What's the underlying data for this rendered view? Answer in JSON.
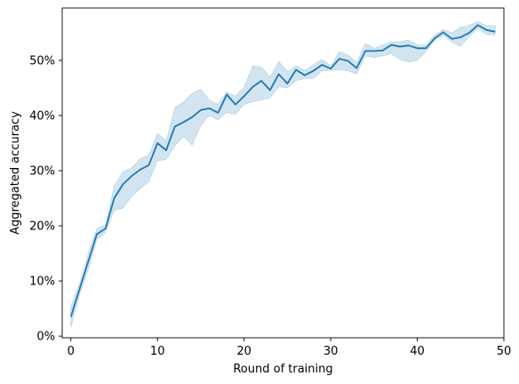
{
  "chart_data": {
    "type": "line",
    "title": "",
    "xlabel": "Round of training",
    "ylabel": "Aggregated accuracy",
    "xlim": [
      -1,
      50
    ],
    "ylim": [
      -0.3,
      59.5
    ],
    "x_ticks": [
      0,
      10,
      20,
      30,
      40,
      50
    ],
    "x_tick_labels": [
      "0",
      "10",
      "20",
      "30",
      "40",
      "50"
    ],
    "y_ticks": [
      0,
      10,
      20,
      30,
      40,
      50
    ],
    "y_tick_labels": [
      "0%",
      "10%",
      "20%",
      "30%",
      "40%",
      "50%"
    ],
    "grid": false,
    "line_color": "#1f77b4",
    "band_color": "#1f77b4",
    "series": [
      {
        "x": [
          0,
          1,
          2,
          3,
          4,
          5,
          6,
          7,
          8,
          9,
          10,
          11,
          12,
          13,
          14,
          15,
          16,
          17,
          18,
          19,
          20,
          21,
          22,
          23,
          24,
          25,
          26,
          27,
          28,
          29,
          30,
          31,
          32,
          33,
          34,
          35,
          36,
          37,
          38,
          39,
          40,
          41,
          42,
          43,
          44,
          45,
          46,
          47,
          48,
          49
        ],
        "mean": [
          3.5,
          8.5,
          13.5,
          18.5,
          19.5,
          25.0,
          27.5,
          29.0,
          30.2,
          31.0,
          35.0,
          33.7,
          38.0,
          38.8,
          39.7,
          41.0,
          41.3,
          40.5,
          43.8,
          42.0,
          43.5,
          45.2,
          46.3,
          44.6,
          47.5,
          45.8,
          48.3,
          47.3,
          48.1,
          49.2,
          48.5,
          50.3,
          49.9,
          48.6,
          51.7,
          51.7,
          51.8,
          52.8,
          52.5,
          52.7,
          52.2,
          52.2,
          54.0,
          55.1,
          53.9,
          54.2,
          55.0,
          56.4,
          55.5,
          55.2
        ],
        "lower": [
          1.5,
          7.5,
          12.0,
          17.5,
          18.8,
          22.8,
          23.2,
          25.3,
          26.7,
          28.0,
          31.8,
          32.0,
          34.5,
          36.2,
          34.6,
          38.2,
          40.0,
          39.2,
          40.6,
          40.2,
          42.0,
          42.5,
          42.8,
          43.2,
          45.2,
          45.0,
          46.3,
          46.7,
          46.7,
          48.1,
          48.2,
          48.3,
          48.1,
          47.5,
          50.8,
          50.5,
          50.8,
          51.2,
          50.2,
          49.7,
          50.0,
          51.6,
          53.6,
          54.5,
          53.3,
          52.5,
          54.4,
          55.8,
          54.7,
          54.6
        ],
        "upper": [
          5.5,
          9.5,
          15.0,
          19.5,
          20.2,
          27.2,
          29.8,
          30.5,
          32.2,
          32.8,
          36.8,
          35.4,
          41.4,
          42.5,
          44.0,
          44.8,
          42.8,
          42.0,
          44.3,
          43.5,
          45.2,
          49.0,
          48.8,
          47.0,
          49.8,
          48.0,
          49.0,
          48.2,
          49.2,
          50.2,
          49.0,
          51.6,
          51.0,
          49.6,
          53.1,
          52.2,
          52.8,
          53.3,
          53.4,
          53.7,
          52.8,
          52.8,
          54.6,
          55.6,
          55.0,
          56.0,
          56.4,
          57.0,
          56.3,
          56.3
        ]
      }
    ]
  }
}
